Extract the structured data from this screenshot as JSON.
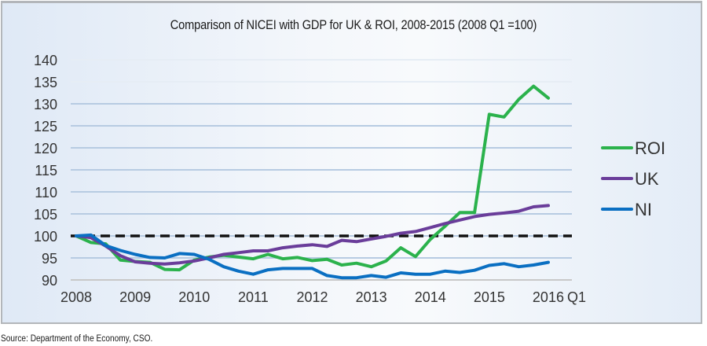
{
  "chart_data": {
    "type": "line",
    "title": "Comparison of NICEI with GDP for UK & ROI, 2008-2015 (2008 Q1 =100)",
    "xlabel": "",
    "ylabel": "",
    "ylim": [
      90,
      140
    ],
    "yticks": [
      "90",
      "95",
      "100",
      "105",
      "110",
      "115",
      "120",
      "125",
      "130",
      "135",
      "140"
    ],
    "xtick_labels": [
      "2008",
      "2009",
      "2010",
      "2011",
      "2012",
      "2013",
      "2014",
      "2015",
      "2016"
    ],
    "x_suffix_label": "Q1",
    "x": [
      "2008Q1",
      "2008Q2",
      "2008Q3",
      "2008Q4",
      "2009Q1",
      "2009Q2",
      "2009Q3",
      "2009Q4",
      "2010Q1",
      "2010Q2",
      "2010Q3",
      "2010Q4",
      "2011Q1",
      "2011Q2",
      "2011Q3",
      "2011Q4",
      "2012Q1",
      "2012Q2",
      "2012Q3",
      "2012Q4",
      "2013Q1",
      "2013Q2",
      "2013Q3",
      "2013Q4",
      "2014Q1",
      "2014Q2",
      "2014Q3",
      "2014Q4",
      "2015Q1",
      "2015Q2",
      "2015Q3",
      "2015Q4",
      "2016Q1"
    ],
    "reference_line": {
      "value": 100,
      "style": "dashed",
      "color": "#111111"
    },
    "grid": true,
    "legend": "right",
    "series": [
      {
        "name": "ROI",
        "color": "#2bb24c",
        "values": [
          100,
          98.5,
          98.2,
          94.5,
          94.2,
          94.0,
          92.4,
          92.3,
          94.5,
          95.2,
          95.6,
          95.2,
          94.8,
          95.8,
          94.8,
          95.1,
          94.4,
          94.7,
          93.4,
          93.8,
          93.0,
          94.3,
          97.3,
          95.3,
          99.2,
          102.2,
          105.3,
          105.3,
          127.6,
          127.0,
          131.0,
          134.0,
          131.3
        ]
      },
      {
        "name": "UK",
        "color": "#6a3d9a",
        "values": [
          100,
          99.6,
          97.7,
          95.5,
          94.1,
          93.8,
          93.6,
          93.9,
          94.3,
          95.0,
          95.8,
          96.2,
          96.6,
          96.6,
          97.3,
          97.7,
          98.0,
          97.6,
          99.0,
          98.7,
          99.3,
          99.9,
          100.6,
          101.0,
          101.9,
          102.8,
          103.6,
          104.4,
          104.9,
          105.2,
          105.6,
          106.6,
          106.9
        ]
      },
      {
        "name": "NI",
        "color": "#0a6fc2",
        "values": [
          100,
          100.2,
          97.8,
          96.7,
          95.8,
          95.1,
          95.0,
          96.0,
          95.8,
          94.7,
          93.0,
          92.0,
          91.3,
          92.3,
          92.6,
          92.6,
          92.6,
          91.0,
          90.5,
          90.5,
          91.0,
          90.6,
          91.6,
          91.3,
          91.3,
          92.0,
          91.7,
          92.2,
          93.3,
          93.7,
          93.0,
          93.4,
          94.0
        ]
      }
    ]
  },
  "footer": {
    "source": "Source: Department of the Economy, CSO."
  }
}
